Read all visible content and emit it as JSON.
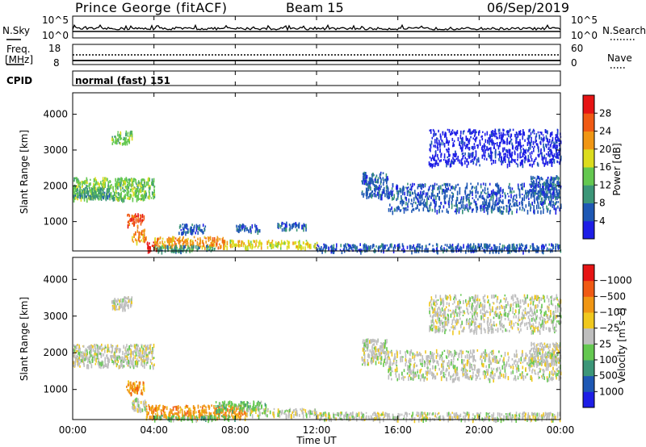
{
  "header": {
    "station": "Prince George (fitACF)",
    "beam": "Beam 15",
    "date": "06/Sep/2019"
  },
  "noise_panel": {
    "left_label": "N.Sky",
    "right_label": "N.Search",
    "left_ticks": [
      "10^5",
      "10^0"
    ],
    "right_ticks": [
      "10^5",
      "10^0"
    ],
    "left_legend_style": "solid",
    "right_legend_style": "dotted"
  },
  "freq_panel": {
    "left_label_1": "Freq.",
    "left_label_2": "[MHz]",
    "right_label": "Nave",
    "left_ticks": [
      "18",
      "8"
    ],
    "right_ticks": [
      "60",
      "0"
    ],
    "left_legend_style": "solid",
    "right_legend_style": "dotted"
  },
  "cpid_panel": {
    "label": "CPID",
    "value": "normal (fast) 151"
  },
  "x_axis": {
    "title": "Time UT",
    "ticks": [
      "00:00",
      "04:00",
      "08:00",
      "12:00",
      "16:00",
      "20:00",
      "00:00"
    ]
  },
  "chart_data": [
    {
      "type": "heatmap",
      "quantity": "Power",
      "ylabel": "Slant Range [km]",
      "ylim": [
        180,
        4600
      ],
      "y_ticks": [
        1000,
        2000,
        3000,
        4000
      ],
      "xlim_hours": [
        0,
        24
      ],
      "colorbar": {
        "label": "Power [dB]",
        "ticks": [
          "4",
          "8",
          "12",
          "16",
          "20",
          "24",
          "28"
        ],
        "colors": [
          "#1e1ee6",
          "#1e58b4",
          "#3c9678",
          "#64c850",
          "#dcdc1e",
          "#f09614",
          "#f05a14",
          "#e61414"
        ]
      },
      "regions": [
        {
          "t0": 0.0,
          "t1": 4.0,
          "r0": 1650,
          "r1": 2250,
          "level": 3
        },
        {
          "t0": 0.0,
          "t1": 1.8,
          "r0": 1700,
          "r1": 1950,
          "level": 2
        },
        {
          "t0": 1.9,
          "t1": 2.9,
          "r0": 3200,
          "r1": 3550,
          "level": 3
        },
        {
          "t0": 2.6,
          "t1": 3.5,
          "r0": 900,
          "r1": 1250,
          "level": 6
        },
        {
          "t0": 2.9,
          "t1": 3.6,
          "r0": 450,
          "r1": 800,
          "level": 5
        },
        {
          "t0": 3.6,
          "t1": 4.1,
          "r0": 200,
          "r1": 450,
          "level": 7
        },
        {
          "t0": 4.0,
          "t1": 7.5,
          "r0": 300,
          "r1": 600,
          "level": 5
        },
        {
          "t0": 4.0,
          "t1": 7.0,
          "r0": 200,
          "r1": 350,
          "level": 2
        },
        {
          "t0": 7.5,
          "t1": 12.0,
          "r0": 300,
          "r1": 500,
          "level": 4
        },
        {
          "t0": 12.0,
          "t1": 24.0,
          "r0": 200,
          "r1": 400,
          "level": 1
        },
        {
          "t0": 5.2,
          "t1": 6.5,
          "r0": 700,
          "r1": 950,
          "level": 1
        },
        {
          "t0": 8.0,
          "t1": 9.2,
          "r0": 750,
          "r1": 950,
          "level": 1
        },
        {
          "t0": 10.0,
          "t1": 11.5,
          "r0": 800,
          "r1": 1000,
          "level": 1
        },
        {
          "t0": 14.2,
          "t1": 15.5,
          "r0": 1700,
          "r1": 2400,
          "level": 1
        },
        {
          "t0": 15.5,
          "t1": 24.0,
          "r0": 1300,
          "r1": 2100,
          "level": 1
        },
        {
          "t0": 17.5,
          "t1": 24.0,
          "r0": 2600,
          "r1": 3600,
          "level": 0
        },
        {
          "t0": 22.5,
          "t1": 24.0,
          "r0": 1700,
          "r1": 2300,
          "level": 1
        }
      ]
    },
    {
      "type": "heatmap",
      "quantity": "Velocity",
      "ylabel": "Slant Range [km]",
      "ylim": [
        180,
        4600
      ],
      "y_ticks": [
        1000,
        2000,
        3000,
        4000
      ],
      "xlim_hours": [
        0,
        24
      ],
      "colorbar": {
        "label": "Velocity [m s⁻¹]",
        "ticks": [
          "1000",
          "500",
          "100",
          "25",
          "−25",
          "−100",
          "−500",
          "−1000"
        ],
        "colors": [
          "#1e1ee6",
          "#1e58b4",
          "#3c9678",
          "#64c850",
          "#bebebe",
          "#f0c81e",
          "#f09614",
          "#f05a14",
          "#e61414"
        ]
      },
      "regions": [
        {
          "t0": 0.0,
          "t1": 4.0,
          "r0": 1650,
          "r1": 2250,
          "level": 4
        },
        {
          "t0": 1.9,
          "t1": 2.9,
          "r0": 3200,
          "r1": 3550,
          "level": 4
        },
        {
          "t0": 2.6,
          "t1": 3.5,
          "r0": 900,
          "r1": 1250,
          "level": 6
        },
        {
          "t0": 2.9,
          "t1": 3.6,
          "r0": 450,
          "r1": 800,
          "level": 4
        },
        {
          "t0": 3.6,
          "t1": 8.5,
          "r0": 250,
          "r1": 600,
          "level": 6
        },
        {
          "t0": 4.0,
          "t1": 8.0,
          "r0": 200,
          "r1": 320,
          "level": 3
        },
        {
          "t0": 7.0,
          "t1": 9.5,
          "r0": 450,
          "r1": 700,
          "level": 3
        },
        {
          "t0": 8.5,
          "t1": 12.0,
          "r0": 300,
          "r1": 500,
          "level": 4
        },
        {
          "t0": 12.0,
          "t1": 24.0,
          "r0": 200,
          "r1": 400,
          "level": 4
        },
        {
          "t0": 14.2,
          "t1": 15.5,
          "r0": 1700,
          "r1": 2400,
          "level": 4
        },
        {
          "t0": 15.5,
          "t1": 24.0,
          "r0": 1300,
          "r1": 2100,
          "level": 4
        },
        {
          "t0": 17.5,
          "t1": 24.0,
          "r0": 2600,
          "r1": 3600,
          "level": 4
        },
        {
          "t0": 22.5,
          "t1": 24.0,
          "r0": 1700,
          "r1": 2300,
          "level": 4
        }
      ]
    }
  ]
}
